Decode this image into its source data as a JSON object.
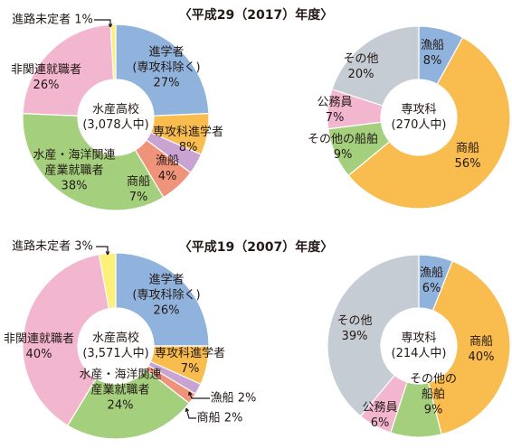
{
  "chart_data": [
    {
      "type": "donut",
      "section_title": "〈平成29（2017）年度〉",
      "center_label": [
        "水産高校",
        "(3,078人中)"
      ],
      "slices": [
        {
          "label": "進学者",
          "label_lines": [
            "進学者",
            "(専攻科除く)",
            "27%"
          ],
          "value": 27,
          "color": "#8fb3dc"
        },
        {
          "label": "専攻科進学者",
          "label_lines": [
            "専攻科進学者",
            "8%"
          ],
          "value": 8,
          "color": "#f9bc4e"
        },
        {
          "label": "漁船",
          "label_lines": [
            "漁船",
            "4%"
          ],
          "value": 4,
          "color": "#c9a3d1"
        },
        {
          "label": "商船",
          "label_lines": [
            "商船",
            "7%"
          ],
          "value": 7,
          "color": "#f0937b"
        },
        {
          "label": "水産・海洋関連産業就職者",
          "label_lines": [
            "水産・海洋関連",
            "産業就職者",
            "38%"
          ],
          "value": 38,
          "color": "#a4d07e"
        },
        {
          "label": "非関連就職者",
          "label_lines": [
            "非関連就職者",
            "26%"
          ],
          "value": 26,
          "color": "#f3b6cf"
        },
        {
          "label": "進路未定者",
          "label_lines": [
            "進路未定者 1%"
          ],
          "value": 1,
          "color": "#fdf07a"
        }
      ]
    },
    {
      "type": "donut",
      "center_label": [
        "専攻科",
        "(270人中)"
      ],
      "slices": [
        {
          "label": "漁船",
          "label_lines": [
            "漁船",
            "8%"
          ],
          "value": 8,
          "color": "#8fb3dc"
        },
        {
          "label": "商船",
          "label_lines": [
            "商船",
            "56%"
          ],
          "value": 56,
          "color": "#f9bc4e"
        },
        {
          "label": "その他の船舶",
          "label_lines": [
            "その他の船舶",
            "9%"
          ],
          "value": 9,
          "color": "#a4d07e"
        },
        {
          "label": "公務員",
          "label_lines": [
            "公務員",
            "7%"
          ],
          "value": 7,
          "color": "#f3b6cf"
        },
        {
          "label": "その他",
          "label_lines": [
            "その他",
            "20%"
          ],
          "value": 20,
          "color": "#c6ccd3"
        }
      ]
    },
    {
      "type": "donut",
      "section_title": "〈平成19（2007）年度〉",
      "center_label": [
        "水産高校",
        "(3,571人中)"
      ],
      "slices": [
        {
          "label": "進学者",
          "label_lines": [
            "進学者",
            "(専攻科除く)",
            "26%"
          ],
          "value": 26,
          "color": "#8fb3dc"
        },
        {
          "label": "専攻科進学者",
          "label_lines": [
            "専攻科進学者",
            "7%"
          ],
          "value": 7,
          "color": "#f9bc4e"
        },
        {
          "label": "漁船",
          "label_lines": [
            "漁船 2%"
          ],
          "value": 2,
          "color": "#c9a3d1"
        },
        {
          "label": "商船",
          "label_lines": [
            "商船 2%"
          ],
          "value": 2,
          "color": "#f0937b"
        },
        {
          "label": "水産・海洋関連産業就職者",
          "label_lines": [
            "水産・海洋関連",
            "産業就職者",
            "24%"
          ],
          "value": 24,
          "color": "#a4d07e"
        },
        {
          "label": "非関連就職者",
          "label_lines": [
            "非関連就職者",
            "40%"
          ],
          "value": 40,
          "color": "#f3b6cf"
        },
        {
          "label": "進路未定者",
          "label_lines": [
            "進路未定者 3%"
          ],
          "value": 3,
          "color": "#fdf07a"
        }
      ]
    },
    {
      "type": "donut",
      "center_label": [
        "専攻科",
        "(214人中)"
      ],
      "slices": [
        {
          "label": "漁船",
          "label_lines": [
            "漁船",
            "6%"
          ],
          "value": 6,
          "color": "#8fb3dc"
        },
        {
          "label": "商船",
          "label_lines": [
            "商船",
            "40%"
          ],
          "value": 40,
          "color": "#f9bc4e"
        },
        {
          "label": "その他の船舶",
          "label_lines": [
            "その他の",
            "船舶",
            "9%"
          ],
          "value": 9,
          "color": "#a4d07e"
        },
        {
          "label": "公務員",
          "label_lines": [
            "公務員",
            "6%"
          ],
          "value": 6,
          "color": "#f3b6cf"
        },
        {
          "label": "その他",
          "label_lines": [
            "その他",
            "39%"
          ],
          "value": 39,
          "color": "#c6ccd3"
        }
      ]
    }
  ]
}
